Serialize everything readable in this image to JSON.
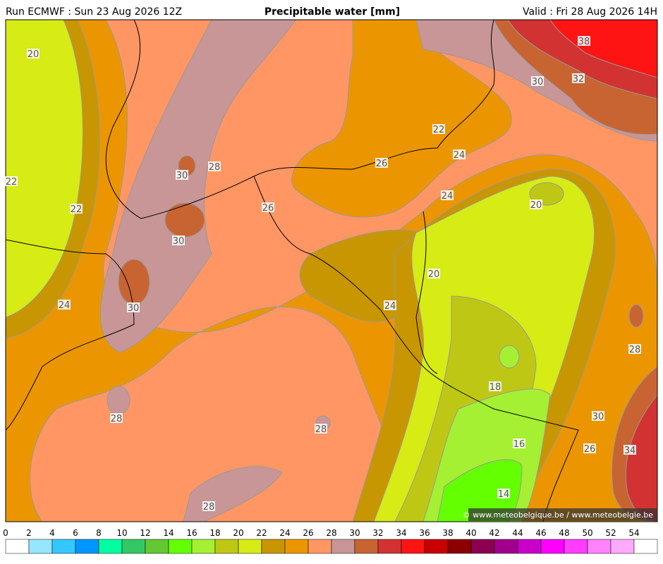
{
  "header": {
    "run": "Run ECMWF : Sun 23 Aug 2026 12Z",
    "title": "Precipitable water [mm]",
    "valid": "Valid : Fri 28 Aug 2026 14H"
  },
  "contour_labels": [
    20,
    38,
    30,
    32,
    22,
    24,
    26,
    30,
    28,
    22,
    22,
    26,
    24,
    20,
    30,
    20,
    24,
    30,
    24,
    28,
    18,
    28,
    28,
    30,
    16,
    26,
    34,
    14,
    28
  ],
  "colorbar": {
    "ticks": [
      0,
      2,
      4,
      6,
      8,
      10,
      12,
      14,
      16,
      18,
      20,
      22,
      24,
      26,
      28,
      30,
      32,
      34,
      36,
      38,
      40,
      42,
      44,
      46,
      48,
      50,
      52,
      54
    ],
    "colors": [
      "#ffffff",
      "#96e6ff",
      "#32c8ff",
      "#0096ff",
      "#00ffa0",
      "#32c864",
      "#64c832",
      "#64ff00",
      "#a5f032",
      "#bec814",
      "#d7eb14",
      "#c89600",
      "#eb9600",
      "#ff9664",
      "#c89696",
      "#c86432",
      "#d23232",
      "#ff1414",
      "#c80000",
      "#8c0000",
      "#8c0050",
      "#a0008c",
      "#c800c8",
      "#ff00ff",
      "#ff3cff",
      "#ff82ff",
      "#ffaaff",
      "#ffffff"
    ]
  },
  "credit": "© www.meteobelgique.be / www.meteobelgie.be"
}
